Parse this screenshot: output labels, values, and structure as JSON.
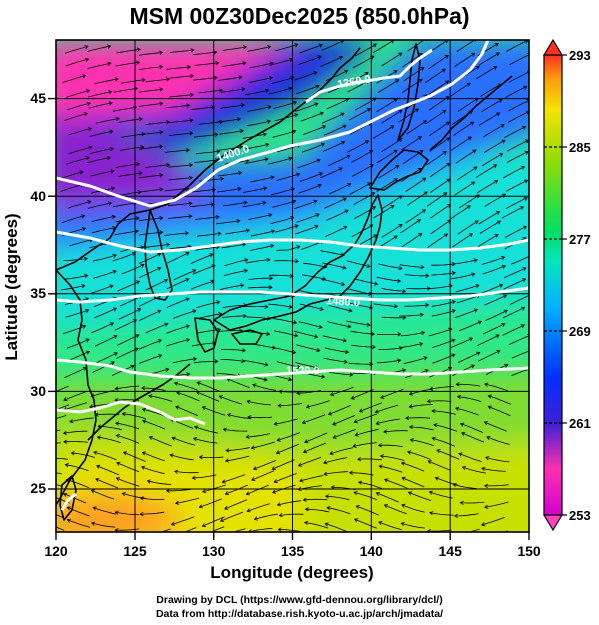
{
  "title": "MSM 00Z30Dec2025 (850.0hPa)",
  "xlabel": "Longitude (degrees)",
  "ylabel": "Latitude  (degrees)",
  "x_ticks": [
    "120",
    "125",
    "130",
    "135",
    "140",
    "145",
    "150"
  ],
  "y_ticks": [
    "25",
    "30",
    "35",
    "40",
    "45"
  ],
  "colorbar_ticks": [
    "293",
    "285",
    "277",
    "269",
    "261",
    "253"
  ],
  "contour_labels": [
    "1360.0",
    "1400.0",
    "1440.0",
    "1480.0",
    "1520.0",
    "1560.0"
  ],
  "credit_line1": "Drawing by DCL (https://www.gfd-dennou.org/library/dcl/)",
  "credit_line2": "Data from http://database.rish.kyoto-u.ac.jp/arch/jmadata/",
  "chart_data": {
    "type": "heatmap",
    "title": "MSM 00Z30Dec2025 (850.0hPa)",
    "xlabel": "Longitude (degrees)",
    "ylabel": "Latitude  (degrees)",
    "xlim": [
      120,
      150
    ],
    "ylim": [
      22.4,
      47.6
    ],
    "colorbar_range": [
      253,
      293
    ],
    "colorbar_ticks": [
      253,
      261,
      269,
      277,
      285,
      293
    ],
    "colormap": [
      "#d400d0",
      "#ff2fb0",
      "#3f1fd8",
      "#0030ff",
      "#00d8ff",
      "#00e060",
      "#9bdc00",
      "#f4e400",
      "#ff9a10",
      "#ff3020"
    ],
    "temperature_field_K": [
      {
        "lon": 122,
        "lat": 46,
        "value": 255
      },
      {
        "lon": 128,
        "lat": 46,
        "value": 254
      },
      {
        "lon": 134,
        "lat": 45,
        "value": 257
      },
      {
        "lon": 140,
        "lat": 44,
        "value": 265
      },
      {
        "lon": 146,
        "lat": 44,
        "value": 270
      },
      {
        "lon": 122,
        "lat": 41,
        "value": 260
      },
      {
        "lon": 130,
        "lat": 40,
        "value": 262
      },
      {
        "lon": 140,
        "lat": 40,
        "value": 272
      },
      {
        "lon": 148,
        "lat": 40,
        "value": 274
      },
      {
        "lon": 124,
        "lat": 36,
        "value": 268
      },
      {
        "lon": 134,
        "lat": 35,
        "value": 274
      },
      {
        "lon": 146,
        "lat": 35,
        "value": 276
      },
      {
        "lon": 124,
        "lat": 30,
        "value": 277
      },
      {
        "lon": 136,
        "lat": 30,
        "value": 279
      },
      {
        "lon": 146,
        "lat": 30,
        "value": 278
      },
      {
        "lon": 124,
        "lat": 26,
        "value": 284
      },
      {
        "lon": 136,
        "lat": 25,
        "value": 283
      },
      {
        "lon": 146,
        "lat": 25,
        "value": 281
      },
      {
        "lon": 123,
        "lat": 23.5,
        "value": 288
      }
    ],
    "height_contours_m": [
      1360.0,
      1400.0,
      1440.0,
      1480.0,
      1520.0,
      1560.0
    ],
    "overlays": [
      "wind streamlines (black)",
      "geopotential height contours (white)",
      "coastlines (black)"
    ]
  }
}
